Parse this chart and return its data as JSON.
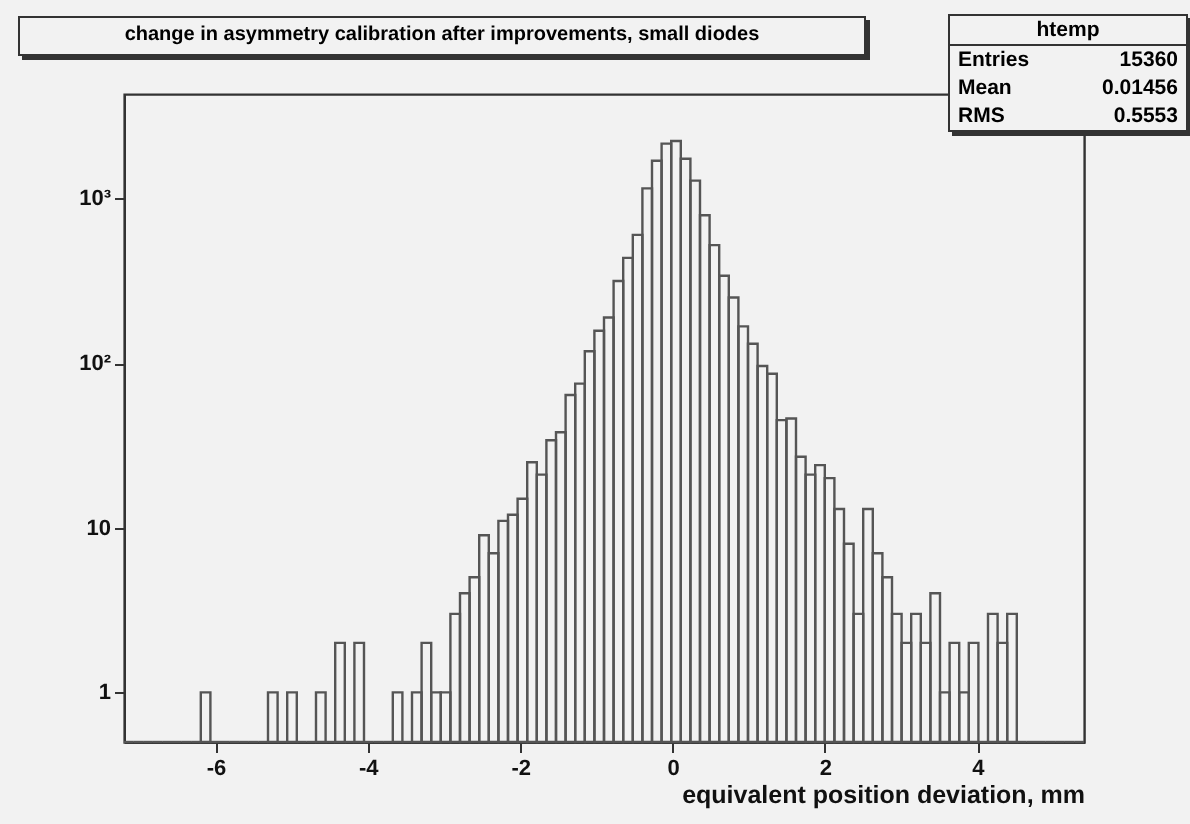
{
  "chart_data": {
    "type": "histogram",
    "title": "change in asymmetry calibration after improvements, small diodes",
    "xlabel": "equivalent position deviation, mm",
    "annotations": [
      "htemp",
      "Entries 15360",
      "Mean 0.01456",
      "RMS 0.5553"
    ],
    "bins": [
      -7.2,
      -7.074,
      -6.948,
      -6.822,
      -6.696,
      -6.57,
      -6.444,
      -6.318,
      -6.192,
      -6.066,
      -5.94,
      -5.814,
      -5.688,
      -5.562,
      -5.436,
      -5.31,
      -5.184,
      -5.058,
      -4.932,
      -4.806,
      -4.68,
      -4.554,
      -4.428,
      -4.302,
      -4.176,
      -4.05,
      -3.924,
      -3.798,
      -3.672,
      -3.546,
      -3.42,
      -3.294,
      -3.168,
      -3.042,
      -2.916,
      -2.79,
      -2.664,
      -2.538,
      -2.412,
      -2.286,
      -2.16,
      -2.034,
      -1.908,
      -1.782,
      -1.656,
      -1.53,
      -1.404,
      -1.278,
      -1.152,
      -1.026,
      -0.9,
      -0.774,
      -0.648,
      -0.522,
      -0.396,
      -0.27,
      -0.144,
      -0.018,
      0.108,
      0.234,
      0.36,
      0.486,
      0.612,
      0.738,
      0.864,
      0.99,
      1.116,
      1.242,
      1.368,
      1.494,
      1.62,
      1.746,
      1.872,
      1.998,
      2.124,
      2.25,
      2.376,
      2.502,
      2.628,
      2.754,
      2.88,
      3.006,
      3.132,
      3.258,
      3.384,
      3.51,
      3.636,
      3.762,
      3.888,
      4.014,
      4.14,
      4.266,
      4.392,
      4.518,
      4.644,
      4.77,
      4.896,
      5.022,
      5.148,
      5.274,
      5.4
    ],
    "values": [
      null,
      null,
      null,
      null,
      null,
      null,
      null,
      null,
      1,
      null,
      null,
      null,
      null,
      null,
      null,
      1,
      null,
      1,
      null,
      null,
      1,
      null,
      2,
      null,
      2,
      null,
      null,
      null,
      1,
      null,
      1,
      2,
      1,
      1,
      3,
      4,
      5,
      9,
      7,
      11,
      12,
      15,
      25,
      21,
      34,
      38,
      64,
      75,
      118,
      157,
      189,
      315,
      435,
      600,
      1150,
      1690,
      2150,
      2230,
      1740,
      1280,
      790,
      520,
      339,
      250,
      167,
      131,
      96,
      86,
      45,
      46,
      27,
      21,
      24,
      20,
      13,
      8,
      3,
      13,
      7,
      5,
      3,
      2,
      3,
      2,
      4,
      1,
      2,
      1,
      2,
      null,
      3,
      2,
      3,
      null,
      null,
      null,
      null,
      null,
      null,
      null
    ],
    "color": "#555555",
    "xlim": [
      -7.2,
      5.4
    ],
    "xticks": [
      -6,
      -4,
      -2,
      0,
      2,
      4
    ],
    "ylim": [
      0.5,
      4300
    ],
    "yticks": [
      1,
      10,
      {
        "value": 100,
        "label": "10²"
      },
      {
        "value": 1000,
        "label": "10³"
      }
    ],
    "log": "y",
    "grid": false
  }
}
